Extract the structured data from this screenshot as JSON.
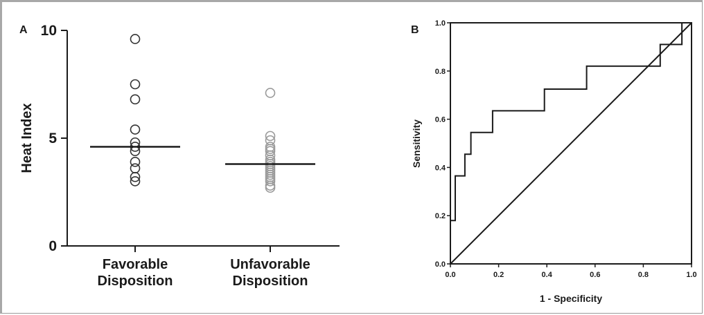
{
  "chart_data": [
    {
      "panel": "A",
      "type": "scatter",
      "ylabel": "Heat Index",
      "ylim": [
        0,
        10
      ],
      "y_ticks": [
        "0",
        "5",
        "10"
      ],
      "categories": [
        "Favorable\nDisposition",
        "Unfavorable\nDisposition"
      ],
      "series": [
        {
          "values": [
            9.6,
            7.5,
            6.8,
            5.4,
            4.8,
            4.6,
            4.4,
            3.9,
            3.6,
            3.2,
            3.0
          ],
          "median": 4.6,
          "color": "#333333"
        },
        {
          "values": [
            7.1,
            5.1,
            4.9,
            4.6,
            4.5,
            4.4,
            4.2,
            4.0,
            3.9,
            3.8,
            3.7,
            3.6,
            3.5,
            3.4,
            3.3,
            3.2,
            3.1,
            3.0,
            2.8,
            2.7
          ],
          "median": 3.8,
          "color": "#9a9a9a"
        }
      ]
    },
    {
      "panel": "B",
      "type": "line",
      "xlabel": "1 - Specificity",
      "ylabel": "Sensitivity",
      "xlim": [
        0,
        1
      ],
      "ylim": [
        0,
        1
      ],
      "x_ticks": [
        "0.0",
        "0.2",
        "0.4",
        "0.6",
        "0.8",
        "1.0"
      ],
      "y_ticks": [
        "0.0",
        "0.2",
        "0.4",
        "0.6",
        "0.8",
        "1.0"
      ],
      "series": [
        {
          "x": [
            0,
            0,
            0.02,
            0.02,
            0.06,
            0.06,
            0.085,
            0.085,
            0.175,
            0.175,
            0.39,
            0.39,
            0.565,
            0.565,
            0.87,
            0.87,
            0.96,
            0.96,
            1.0
          ],
          "y": [
            0,
            0.18,
            0.18,
            0.365,
            0.365,
            0.455,
            0.455,
            0.545,
            0.545,
            0.635,
            0.635,
            0.725,
            0.725,
            0.82,
            0.82,
            0.91,
            0.91,
            1.0,
            1.0
          ]
        },
        {
          "x": [
            0,
            1
          ],
          "y": [
            0,
            1
          ]
        }
      ]
    }
  ]
}
